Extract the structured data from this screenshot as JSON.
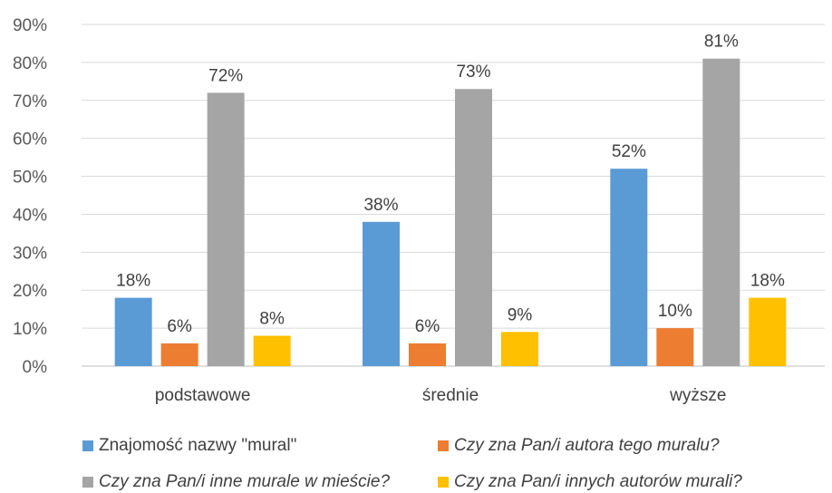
{
  "chart_data": {
    "type": "bar",
    "categories": [
      "podstawowe",
      "średnie",
      "wyższe"
    ],
    "series": [
      {
        "name": "Znajomość nazwy \"mural\"",
        "values": [
          18,
          38,
          52
        ],
        "labels": [
          "18%",
          "38%",
          "52%"
        ],
        "color": "#5B9BD5",
        "italic": false
      },
      {
        "name": "Czy zna Pan/i autora tego muralu?",
        "values": [
          6,
          6,
          10
        ],
        "labels": [
          "6%",
          "6%",
          "10%"
        ],
        "color": "#ED7D31",
        "italic": true
      },
      {
        "name": "Czy zna Pan/i inne murale w mieście?",
        "values": [
          72,
          73,
          81
        ],
        "labels": [
          "72%",
          "73%",
          "81%"
        ],
        "color": "#A5A5A5",
        "italic": true
      },
      {
        "name": "Czy zna Pan/i innych autorów murali?",
        "values": [
          8,
          9,
          18
        ],
        "labels": [
          "8%",
          "9%",
          "18%"
        ],
        "color": "#FFC000",
        "italic": true
      }
    ],
    "yticks": [
      "0%",
      "10%",
      "20%",
      "30%",
      "40%",
      "50%",
      "60%",
      "70%",
      "80%",
      "90%"
    ],
    "ylim": [
      0,
      90
    ],
    "grid": true,
    "legend": "bottom",
    "title": "",
    "xlabel": "",
    "ylabel": ""
  }
}
